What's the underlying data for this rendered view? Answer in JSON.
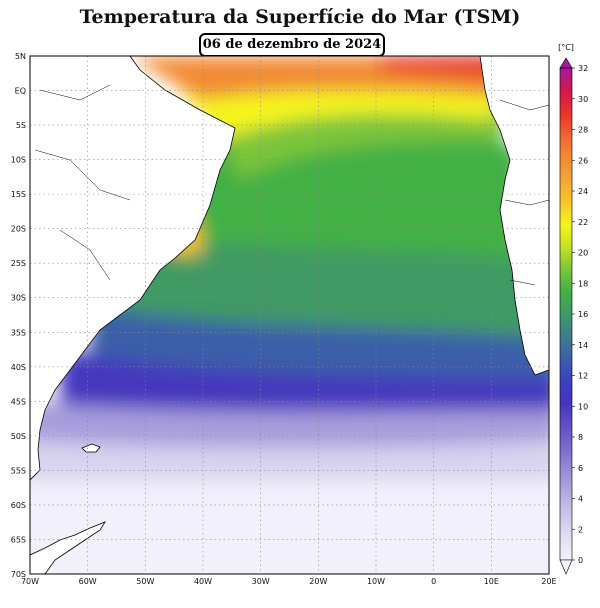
{
  "title": "Temperatura da Superfície do Mar (TSM)",
  "date": "06 de dezembro de 2024",
  "map": {
    "lat_labels": [
      "5N",
      "EQ",
      "5S",
      "10S",
      "15S",
      "20S",
      "25S",
      "30S",
      "35S",
      "40S",
      "45S",
      "50S",
      "55S",
      "60S",
      "65S",
      "70S"
    ],
    "lon_labels": [
      "70W",
      "60W",
      "50W",
      "40W",
      "30W",
      "20W",
      "10W",
      "0",
      "10E",
      "20E"
    ]
  },
  "colorbar": {
    "unit": "[°C]",
    "ticks": [
      "32",
      "30",
      "28",
      "26",
      "24",
      "22",
      "20",
      "18",
      "16",
      "14",
      "12",
      "10",
      "8",
      "6",
      "4",
      "2",
      "0"
    ],
    "colors": [
      "#f4f2fb",
      "#e2def3",
      "#ccc6ea",
      "#b3aae0",
      "#998bd6",
      "#7d6bcc",
      "#6250c4",
      "#4636bd",
      "#3d40c0",
      "#3b5fa9",
      "#3e7d8c",
      "#3f9a64",
      "#43b045",
      "#7bc53b",
      "#c8e028",
      "#f5f51e",
      "#f7c52a",
      "#f4a53a",
      "#f28a35",
      "#ef6432",
      "#e8322c",
      "#d1184e",
      "#a21a9e"
    ]
  }
}
